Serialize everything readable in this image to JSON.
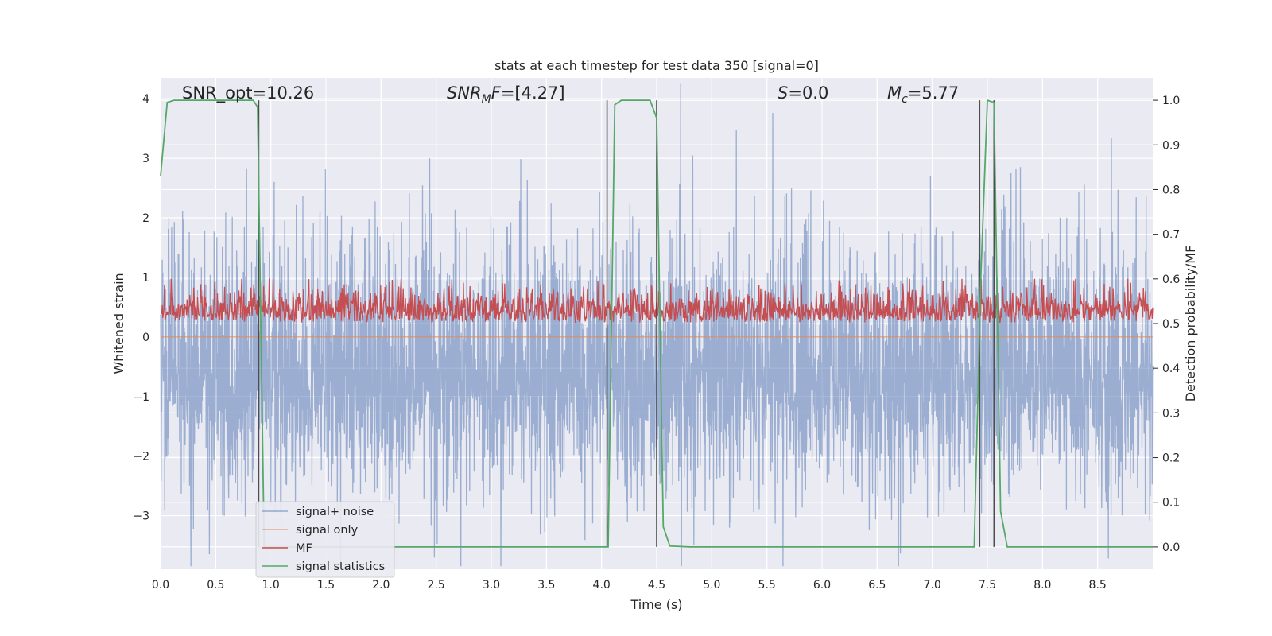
{
  "chart_data": {
    "type": "line",
    "title": "stats at each timestep for test data 350 [signal=0]",
    "xlabel": "Time (s)",
    "ylabel": "Whitened strain",
    "ylabel_right": "Detection probability/MF",
    "xlim": [
      0.0,
      9.0
    ],
    "ylim": [
      -3.9,
      4.35
    ],
    "ylim_right": [
      -0.05,
      1.05
    ],
    "xticks": [
      "0.0",
      "0.5",
      "1.0",
      "1.5",
      "2.0",
      "2.5",
      "3.0",
      "3.5",
      "4.0",
      "4.5",
      "5.0",
      "5.5",
      "6.0",
      "6.5",
      "7.0",
      "7.5",
      "8.0",
      "8.5"
    ],
    "yticks": [
      "4",
      "3",
      "2",
      "1",
      "0",
      "−1",
      "−2",
      "−3"
    ],
    "yticks_right": [
      "1.0",
      "0.9",
      "0.8",
      "0.7",
      "0.6",
      "0.5",
      "0.4",
      "0.3",
      "0.2",
      "0.1",
      "0.0"
    ],
    "grid": true,
    "legend_placement": "lower-left",
    "annotations": [
      {
        "label": "SNR_opt=10.26",
        "x": 0.2
      },
      {
        "label_main": "SNR",
        "label_sub": "M",
        "label_rest": "F=[4.27]",
        "x": 2.6
      },
      {
        "label_main": "S",
        "label_sub": "",
        "label_rest": "=0.0",
        "x": 5.6
      },
      {
        "label_main": "M",
        "label_sub": "c",
        "label_rest": "=5.77",
        "x": 6.6
      }
    ],
    "series": [
      {
        "name": "signal+ noise",
        "color": "#4c72b0",
        "description": "dense noisy strain, approx amplitude ±2.5 with spikes to ±4"
      },
      {
        "name": "signal only",
        "color": "#dd8452",
        "values_constant": 0.0
      },
      {
        "name": "MF",
        "color": "#c44e52",
        "axis": "right",
        "range": [
          0.5,
          0.58
        ]
      },
      {
        "name": "signal statistics",
        "color": "#55a868",
        "axis": "right",
        "x": [
          0.0,
          0.06,
          0.12,
          0.84,
          0.88,
          0.94,
          4.02,
          4.06,
          4.12,
          4.18,
          4.44,
          4.5,
          4.56,
          4.62,
          4.8,
          7.38,
          7.44,
          7.5,
          7.56,
          7.62,
          7.68,
          9.0
        ],
        "y": [
          0.83,
          0.995,
          1.0,
          1.0,
          0.985,
          0.0,
          0.0,
          0.0,
          0.99,
          1.0,
          1.0,
          0.96,
          0.045,
          0.002,
          0.0,
          0.0,
          0.6,
          1.0,
          0.995,
          0.08,
          0.0,
          0.0
        ]
      }
    ],
    "vertical_markers": {
      "color": "#4d4d4d",
      "x": [
        0.89,
        4.05,
        4.5,
        7.43,
        7.56
      ],
      "top": 1.0,
      "bottom": 0.0,
      "axis": "right"
    }
  }
}
